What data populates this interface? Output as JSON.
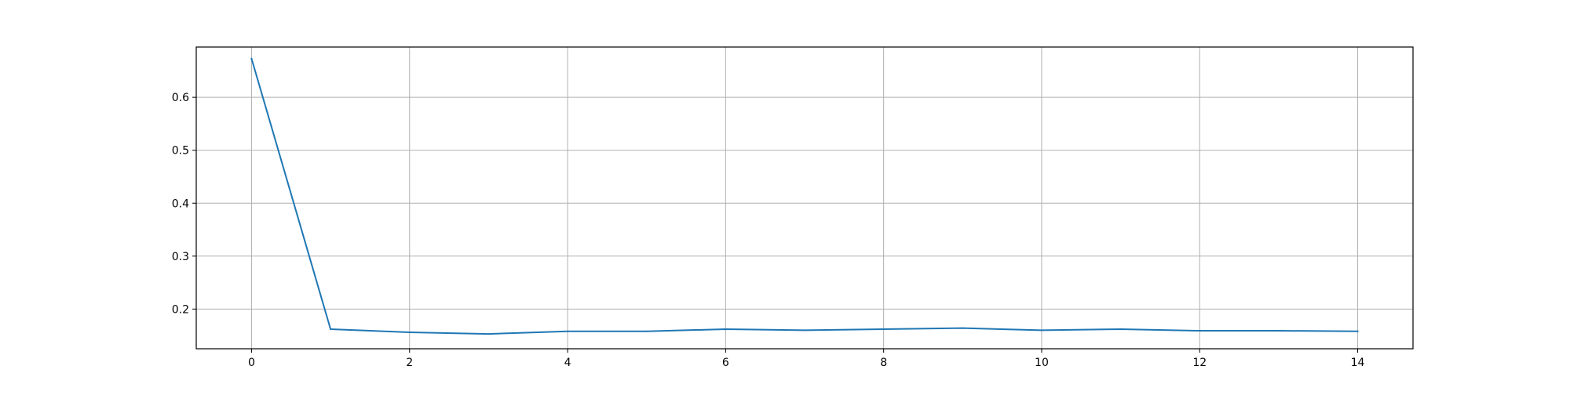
{
  "chart_data": {
    "type": "line",
    "title": "",
    "xlabel": "",
    "ylabel": "",
    "xlim": [
      -0.7,
      14.7
    ],
    "ylim": [
      0.125,
      0.695
    ],
    "x_ticks": [
      0,
      2,
      4,
      6,
      8,
      10,
      12,
      14
    ],
    "x_tick_labels": [
      "0",
      "2",
      "4",
      "6",
      "8",
      "10",
      "12",
      "14"
    ],
    "y_ticks": [
      0.2,
      0.3,
      0.4,
      0.5,
      0.6
    ],
    "y_tick_labels": [
      "0.2",
      "0.3",
      "0.4",
      "0.5",
      "0.6"
    ],
    "grid": true,
    "legend": "none",
    "series": [
      {
        "color": "#1f77b4",
        "x": [
          0,
          1,
          2,
          3,
          4,
          5,
          6,
          7,
          8,
          9,
          10,
          11,
          12,
          13,
          14
        ],
        "values": [
          0.673,
          0.162,
          0.156,
          0.153,
          0.158,
          0.158,
          0.162,
          0.16,
          0.162,
          0.164,
          0.16,
          0.162,
          0.159,
          0.159,
          0.158
        ]
      }
    ]
  }
}
